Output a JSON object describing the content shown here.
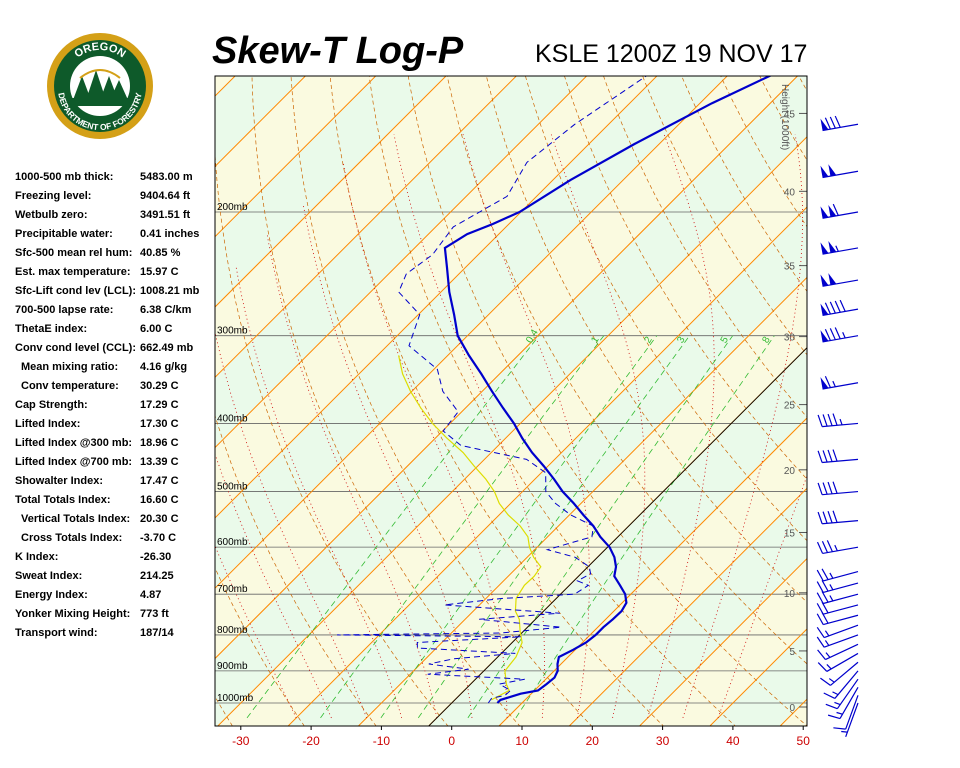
{
  "header": {
    "title": "Skew-T Log-P",
    "station": "KSLE 1200Z 19 NOV 17"
  },
  "logo": {
    "top_text": "OREGON",
    "bottom_text": "DEPARTMENT OF FORESTRY"
  },
  "stats": [
    {
      "label": "1000-500 mb thick:",
      "value": "5483.00 m"
    },
    {
      "label": "Freezing level:",
      "value": "9404.64 ft"
    },
    {
      "label": "Wetbulb zero:",
      "value": "3491.51 ft"
    },
    {
      "label": "Precipitable water:",
      "value": "0.41 inches"
    },
    {
      "label": "Sfc-500 mean rel hum:",
      "value": "40.85 %"
    },
    {
      "label": "Est. max temperature:",
      "value": "15.97 C"
    },
    {
      "label": "Sfc-Lift cond lev (LCL):",
      "value": "1008.21 mb"
    },
    {
      "label": "700-500 lapse rate:",
      "value": "6.38 C/km"
    },
    {
      "label": "ThetaE index:",
      "value": "6.00 C"
    },
    {
      "label": "Conv cond level (CCL):",
      "value": "662.49 mb"
    },
    {
      "label": "Mean mixing ratio:",
      "value": "4.16 g/kg",
      "indent": true
    },
    {
      "label": "Conv temperature:",
      "value": "30.29 C",
      "indent": true
    },
    {
      "label": "Cap Strength:",
      "value": "17.29 C"
    },
    {
      "label": "Lifted Index:",
      "value": "17.30 C"
    },
    {
      "label": "Lifted Index @300 mb:",
      "value": "18.96 C"
    },
    {
      "label": "Lifted Index @700 mb:",
      "value": "13.39 C"
    },
    {
      "label": "Showalter Index:",
      "value": "17.47 C"
    },
    {
      "label": "Total Totals Index:",
      "value": "16.60 C"
    },
    {
      "label": "Vertical Totals Index:",
      "value": "20.30 C",
      "indent": true
    },
    {
      "label": "Cross Totals Index:",
      "value": "-3.70 C",
      "indent": true
    },
    {
      "label": "K Index:",
      "value": "-26.30"
    },
    {
      "label": "Sweat Index:",
      "value": "214.25"
    },
    {
      "label": "Energy Index:",
      "value": "4.87"
    },
    {
      "label": "Yonker Mixing Height:",
      "value": "773 ft"
    },
    {
      "label": "Transport wind:",
      "value": "187/14"
    }
  ],
  "chart_data": {
    "type": "line",
    "x_ticks": [
      "-30",
      "-20",
      "-10",
      "0",
      "10",
      "20",
      "30",
      "40",
      "50"
    ],
    "x_range": [
      -33,
      51
    ],
    "pressure_labels": [
      "200mb",
      "300mb",
      "400mb",
      "500mb",
      "600mb",
      "700mb",
      "800mb",
      "900mb",
      "1000mb"
    ],
    "pressure_levels": [
      200,
      300,
      400,
      500,
      600,
      700,
      800,
      900,
      1000
    ],
    "height_axis_label": "Height (1000ft)",
    "height_ticks": [
      "0",
      "5",
      "10",
      "15",
      "20",
      "25",
      "30",
      "35",
      "40",
      "45",
      "50"
    ],
    "mixing_ratio_labels": [
      "0.4",
      "1",
      "2",
      "3",
      "5",
      "8"
    ],
    "temperature_profile": [
      {
        "p": 1000,
        "t": 6.5
      },
      {
        "p": 990,
        "t": 6.5
      },
      {
        "p": 980,
        "t": 7.5
      },
      {
        "p": 970,
        "t": 8.5
      },
      {
        "p": 960,
        "t": 10.5
      },
      {
        "p": 940,
        "t": 10.8
      },
      {
        "p": 920,
        "t": 11.0
      },
      {
        "p": 900,
        "t": 10.5
      },
      {
        "p": 880,
        "t": 9.5
      },
      {
        "p": 860,
        "t": 8.7
      },
      {
        "p": 840,
        "t": 9.7
      },
      {
        "p": 820,
        "t": 10.5
      },
      {
        "p": 800,
        "t": 10.8
      },
      {
        "p": 780,
        "t": 10.8
      },
      {
        "p": 760,
        "t": 11.0
      },
      {
        "p": 740,
        "t": 11.1
      },
      {
        "p": 720,
        "t": 10.6
      },
      {
        "p": 700,
        "t": 9.2
      },
      {
        "p": 680,
        "t": 7.2
      },
      {
        "p": 660,
        "t": 5.1
      },
      {
        "p": 640,
        "t": 4.0
      },
      {
        "p": 620,
        "t": 2.4
      },
      {
        "p": 600,
        "t": 0.3
      },
      {
        "p": 580,
        "t": -2.5
      },
      {
        "p": 560,
        "t": -5.0
      },
      {
        "p": 540,
        "t": -8.0
      },
      {
        "p": 520,
        "t": -11.0
      },
      {
        "p": 500,
        "t": -14.3
      },
      {
        "p": 480,
        "t": -17.3
      },
      {
        "p": 460,
        "t": -20.6
      },
      {
        "p": 440,
        "t": -24.2
      },
      {
        "p": 420,
        "t": -27.6
      },
      {
        "p": 400,
        "t": -30.9
      },
      {
        "p": 380,
        "t": -34.7
      },
      {
        "p": 360,
        "t": -38.6
      },
      {
        "p": 340,
        "t": -42.6
      },
      {
        "p": 320,
        "t": -47.0
      },
      {
        "p": 300,
        "t": -51.4
      },
      {
        "p": 280,
        "t": -54.9
      },
      {
        "p": 260,
        "t": -58.8
      },
      {
        "p": 240,
        "t": -62.6
      },
      {
        "p": 225,
        "t": -65.7
      },
      {
        "p": 215,
        "t": -64.5
      },
      {
        "p": 208,
        "t": -62.3
      },
      {
        "p": 200,
        "t": -60.2
      },
      {
        "p": 180,
        "t": -57.5
      },
      {
        "p": 160,
        "t": -53.5
      },
      {
        "p": 140,
        "t": -48.3
      },
      {
        "p": 125,
        "t": -42.8
      }
    ],
    "dewpoint_profile": [
      {
        "p": 1000,
        "t": 5.2
      },
      {
        "p": 985,
        "t": 5.0
      },
      {
        "p": 975,
        "t": 6.5
      },
      {
        "p": 960,
        "t": 6.6
      },
      {
        "p": 940,
        "t": 4.1
      },
      {
        "p": 925,
        "t": 7.0
      },
      {
        "p": 910,
        "t": -7.5
      },
      {
        "p": 895,
        "t": -2.4
      },
      {
        "p": 880,
        "t": -8.8
      },
      {
        "p": 865,
        "t": -6.0
      },
      {
        "p": 850,
        "t": 2.0
      },
      {
        "p": 835,
        "t": -12.7
      },
      {
        "p": 820,
        "t": -13.5
      },
      {
        "p": 805,
        "t": 0.5
      },
      {
        "p": 800,
        "t": -26.0
      },
      {
        "p": 795,
        "t": -3.0
      },
      {
        "p": 780,
        "t": 4.8
      },
      {
        "p": 760,
        "t": -8.0
      },
      {
        "p": 745,
        "t": 2.6
      },
      {
        "p": 725,
        "t": -15.0
      },
      {
        "p": 710,
        "t": -7.8
      },
      {
        "p": 700,
        "t": 2.0
      },
      {
        "p": 680,
        "t": 2.7
      },
      {
        "p": 670,
        "t": 0.5
      },
      {
        "p": 655,
        "t": 1.4
      },
      {
        "p": 640,
        "t": 0.2
      },
      {
        "p": 620,
        "t": -3.2
      },
      {
        "p": 605,
        "t": -8.2
      },
      {
        "p": 580,
        "t": -3.7
      },
      {
        "p": 560,
        "t": -5.0
      },
      {
        "p": 540,
        "t": -9.8
      },
      {
        "p": 520,
        "t": -13.6
      },
      {
        "p": 500,
        "t": -16.7
      },
      {
        "p": 470,
        "t": -19.4
      },
      {
        "p": 450,
        "t": -24.0
      },
      {
        "p": 430,
        "t": -35.3
      },
      {
        "p": 410,
        "t": -39.9
      },
      {
        "p": 385,
        "t": -40.5
      },
      {
        "p": 360,
        "t": -45.6
      },
      {
        "p": 335,
        "t": -49.5
      },
      {
        "p": 310,
        "t": -56.9
      },
      {
        "p": 280,
        "t": -59.8
      },
      {
        "p": 260,
        "t": -66.0
      },
      {
        "p": 245,
        "t": -67.5
      },
      {
        "p": 230,
        "t": -66.5
      },
      {
        "p": 210,
        "t": -67.5
      },
      {
        "p": 190,
        "t": -64.2
      },
      {
        "p": 170,
        "t": -66.2
      },
      {
        "p": 150,
        "t": -64.8
      },
      {
        "p": 125,
        "t": -61.0
      }
    ],
    "parcel_path": [
      {
        "p": 990,
        "t": 5.2
      },
      {
        "p": 960,
        "t": 6.4
      },
      {
        "p": 940,
        "t": 5.1
      },
      {
        "p": 900,
        "t": 3.0
      },
      {
        "p": 860,
        "t": 2.6
      },
      {
        "p": 820,
        "t": 1.4
      },
      {
        "p": 790,
        "t": -0.5
      },
      {
        "p": 760,
        "t": -2.3
      },
      {
        "p": 740,
        "t": -4.0
      },
      {
        "p": 710,
        "t": -5.7
      },
      {
        "p": 680,
        "t": -6.4
      },
      {
        "p": 660,
        "t": -6.3
      },
      {
        "p": 640,
        "t": -6.7
      },
      {
        "p": 620,
        "t": -9.1
      },
      {
        "p": 600,
        "t": -11.1
      },
      {
        "p": 580,
        "t": -12.8
      },
      {
        "p": 560,
        "t": -15.4
      },
      {
        "p": 540,
        "t": -18.7
      },
      {
        "p": 520,
        "t": -21.6
      },
      {
        "p": 500,
        "t": -24.0
      },
      {
        "p": 480,
        "t": -27.0
      },
      {
        "p": 460,
        "t": -30.5
      },
      {
        "p": 440,
        "t": -34.0
      },
      {
        "p": 420,
        "t": -38.3
      },
      {
        "p": 400,
        "t": -42.5
      },
      {
        "p": 380,
        "t": -46.4
      },
      {
        "p": 360,
        "t": -50.2
      },
      {
        "p": 340,
        "t": -53.8
      },
      {
        "p": 320,
        "t": -57.0
      }
    ],
    "wind_barbs": [
      {
        "p": 1000,
        "dir": 200,
        "kt": 8
      },
      {
        "p": 975,
        "dir": 200,
        "kt": 10
      },
      {
        "p": 950,
        "dir": 210,
        "kt": 15
      },
      {
        "p": 925,
        "dir": 215,
        "kt": 15
      },
      {
        "p": 900,
        "dir": 220,
        "kt": 15
      },
      {
        "p": 875,
        "dir": 230,
        "kt": 15
      },
      {
        "p": 850,
        "dir": 240,
        "kt": 15
      },
      {
        "p": 825,
        "dir": 245,
        "kt": 15
      },
      {
        "p": 800,
        "dir": 250,
        "kt": 15
      },
      {
        "p": 775,
        "dir": 250,
        "kt": 15
      },
      {
        "p": 750,
        "dir": 255,
        "kt": 20
      },
      {
        "p": 725,
        "dir": 255,
        "kt": 20
      },
      {
        "p": 700,
        "dir": 255,
        "kt": 25
      },
      {
        "p": 675,
        "dir": 255,
        "kt": 25
      },
      {
        "p": 650,
        "dir": 255,
        "kt": 25
      },
      {
        "p": 600,
        "dir": 260,
        "kt": 35
      },
      {
        "p": 550,
        "dir": 265,
        "kt": 40
      },
      {
        "p": 500,
        "dir": 265,
        "kt": 40
      },
      {
        "p": 450,
        "dir": 265,
        "kt": 40
      },
      {
        "p": 400,
        "dir": 265,
        "kt": 45
      },
      {
        "p": 350,
        "dir": 260,
        "kt": 65
      },
      {
        "p": 300,
        "dir": 260,
        "kt": 85
      },
      {
        "p": 275,
        "dir": 260,
        "kt": 90
      },
      {
        "p": 250,
        "dir": 260,
        "kt": 100
      },
      {
        "p": 225,
        "dir": 260,
        "kt": 105
      },
      {
        "p": 200,
        "dir": 260,
        "kt": 110
      },
      {
        "p": 175,
        "dir": 260,
        "kt": 100
      },
      {
        "p": 150,
        "dir": 260,
        "kt": 80
      },
      {
        "p": 130,
        "dir": 255,
        "kt": 70
      }
    ],
    "colors": {
      "temperature": "#0000cc",
      "dewpoint": "#0000cc",
      "parcel": "#dddd00",
      "isotherm": "#ff8800",
      "dry_adiabat": "#cc6600",
      "moist_adiabat": "#cc0000",
      "mixing_ratio": "#33bb33",
      "isobar": "#666666",
      "band_a": "#eafaea",
      "band_b": "#fafae0"
    }
  }
}
